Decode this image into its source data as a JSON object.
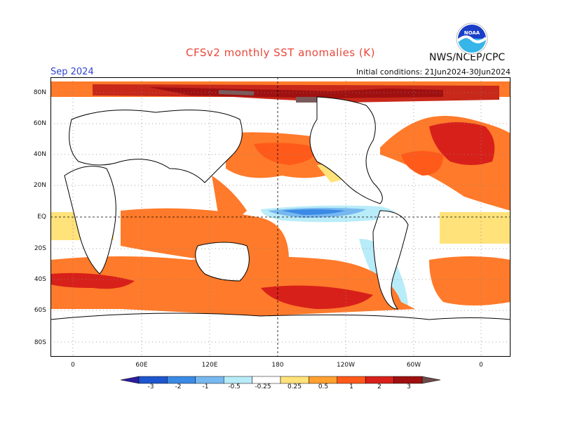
{
  "header": {
    "title": "CFSv2 monthly SST anomalies (K)",
    "agency": "NWS/NCEP/CPC",
    "month": "Sep 2024",
    "initial_conditions": "Initial conditions: 21Jun2024-30Jun2024",
    "logo_text": "NOAA"
  },
  "map": {
    "lat_labels": [
      "80N",
      "60N",
      "40N",
      "20N",
      "EQ",
      "20S",
      "40S",
      "60S",
      "80S"
    ],
    "lon_labels": [
      "0",
      "60E",
      "120E",
      "180",
      "120W",
      "60W",
      "0"
    ]
  },
  "colorbar": {
    "tick_labels": [
      "-3",
      "-2",
      "-1",
      "-0.5",
      "-0.25",
      "0.25",
      "0.5",
      "1",
      "2",
      "3"
    ],
    "colors": [
      "#2b1ea0",
      "#1e56d0",
      "#3a8ae6",
      "#78b8f0",
      "#b8ecf8",
      "#ffffff",
      "#ffe27a",
      "#ffa030",
      "#ff5a1a",
      "#d8201a",
      "#a01010",
      "#6e4a4a"
    ]
  }
}
